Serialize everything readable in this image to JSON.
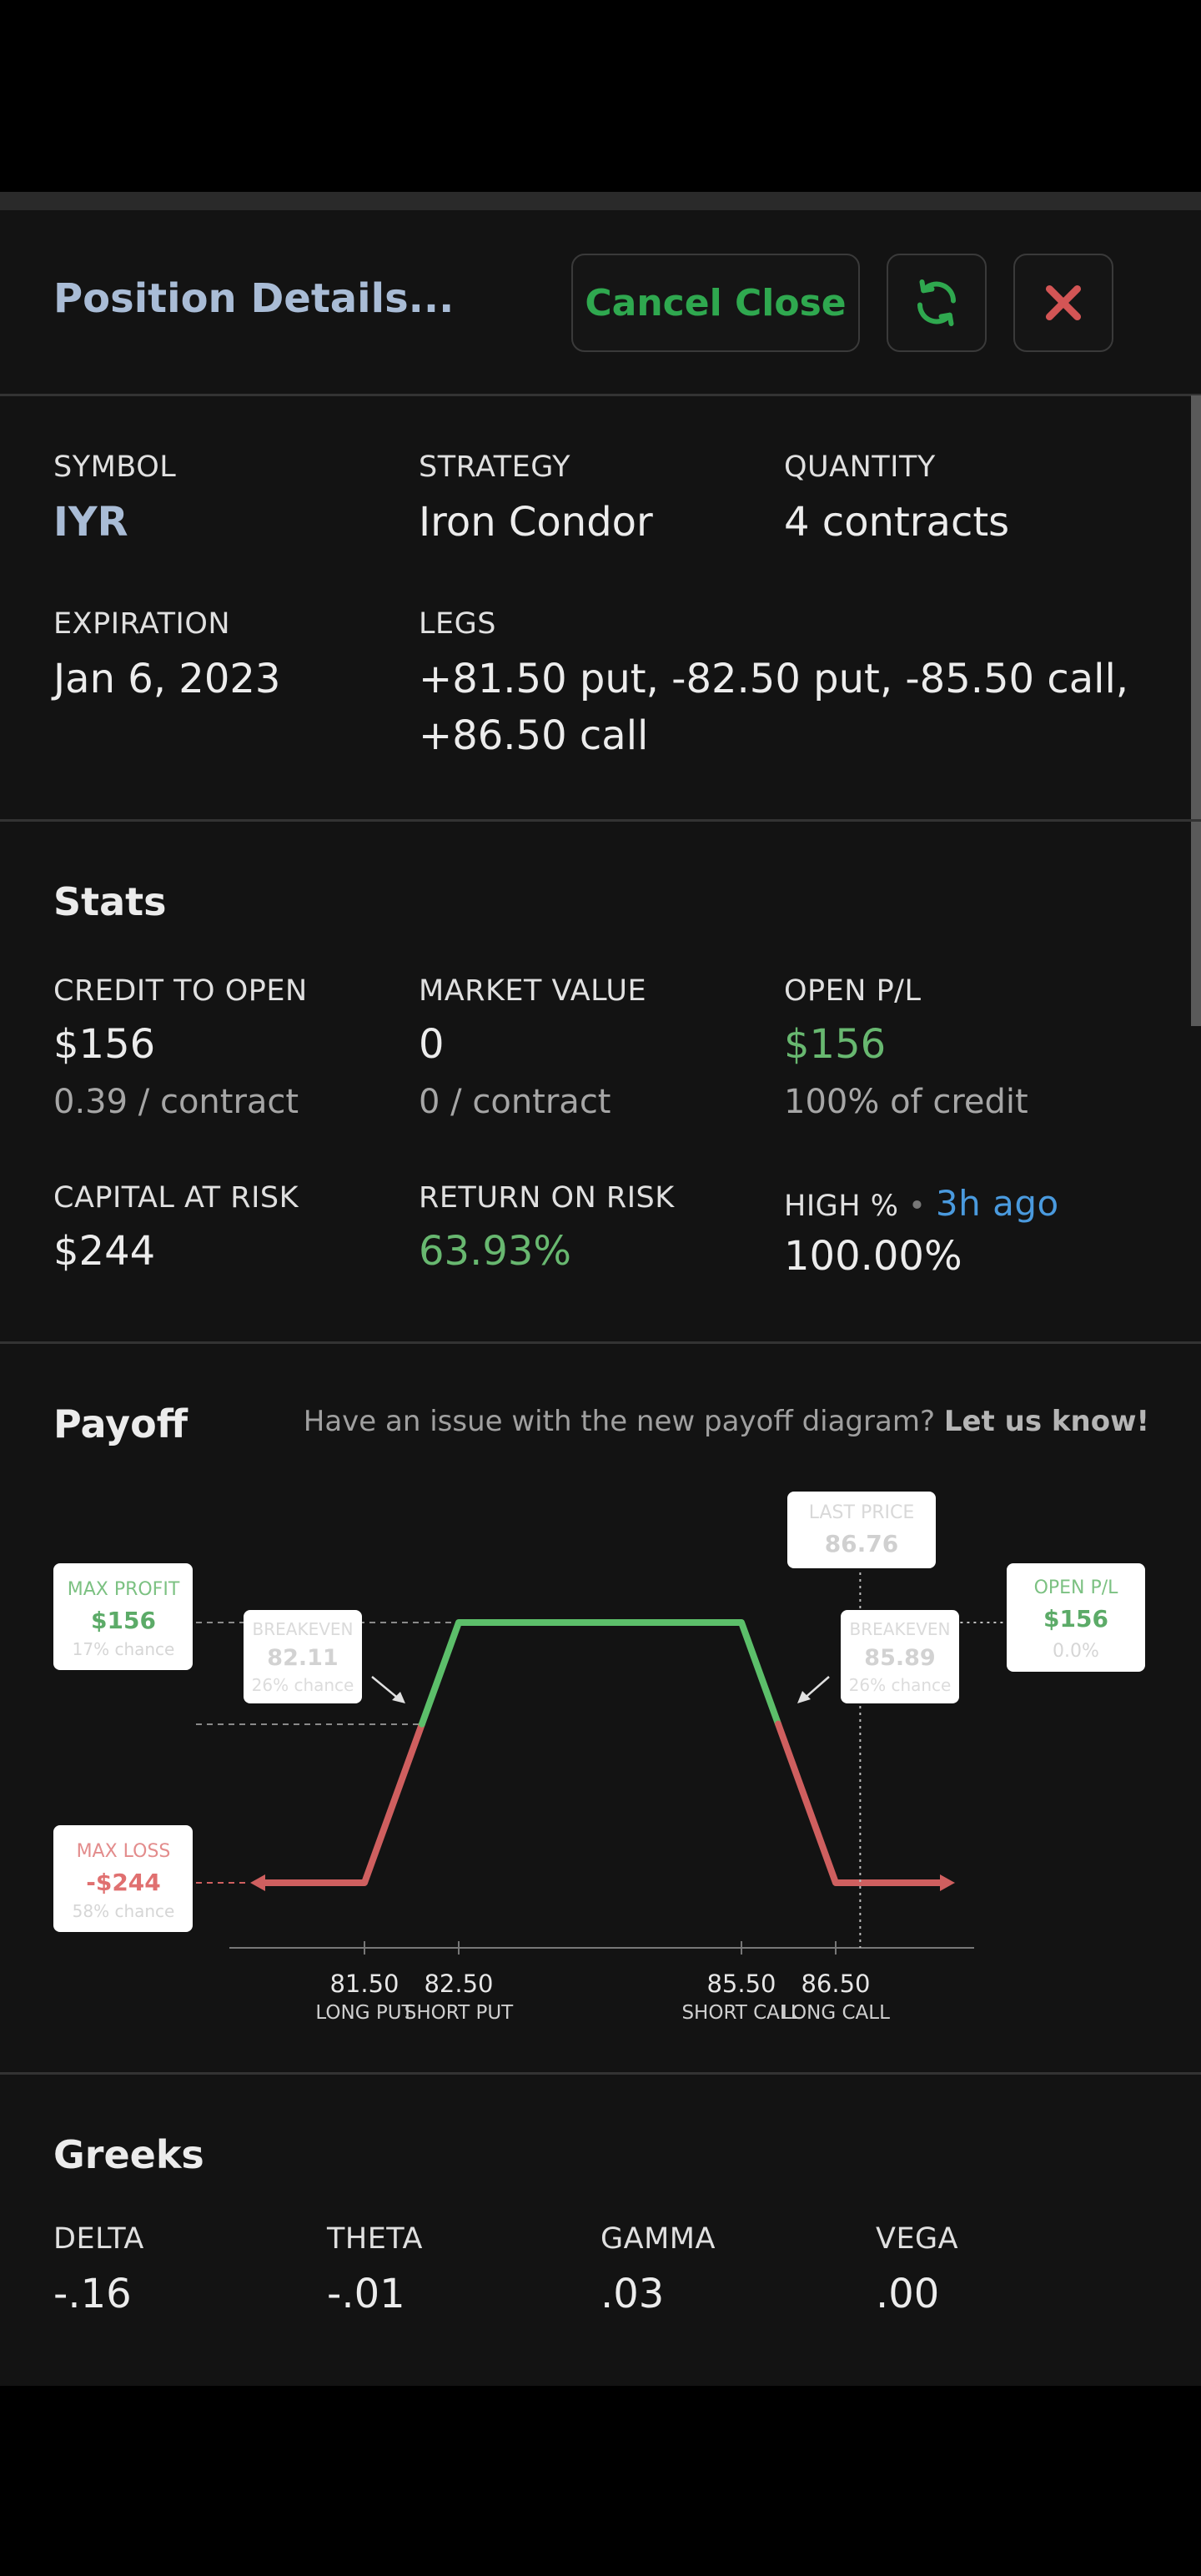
{
  "header": {
    "title": "Position Details...",
    "cancel_close_label": "Cancel Close"
  },
  "details": {
    "symbol_label": "SYMBOL",
    "symbol": "IYR",
    "strategy_label": "STRATEGY",
    "strategy": "Iron Condor",
    "quantity_label": "QUANTITY",
    "quantity": "4 contracts",
    "expiration_label": "EXPIRATION",
    "expiration": "Jan 6, 2023",
    "legs_label": "LEGS",
    "legs_line1": "+81.50 put, -82.50 put, -85.50 call,",
    "legs_line2": "+86.50 call"
  },
  "stats": {
    "title": "Stats",
    "credit_label": "CREDIT TO OPEN",
    "credit": "$156",
    "credit_sub": "0.39 / contract",
    "market_label": "MARKET VALUE",
    "market": "0",
    "market_sub": "0 / contract",
    "openpl_label": "OPEN P/L",
    "openpl": "$156",
    "openpl_sub": "100% of credit",
    "capital_label": "CAPITAL AT RISK",
    "capital": "$244",
    "ror_label": "RETURN ON RISK",
    "ror": "63.93%",
    "high_label": "HIGH %",
    "high_sep": "•",
    "high_time": "3h ago",
    "high_value": "100.00%"
  },
  "payoff": {
    "title": "Payoff",
    "note_prefix": "Have an issue with the new payoff diagram?",
    "note_link": "Let us know!"
  },
  "chart_data": {
    "type": "line",
    "x": [
      81.0,
      81.5,
      82.5,
      85.5,
      86.5,
      87.0
    ],
    "y": [
      -244,
      -244,
      156,
      156,
      -244,
      -244
    ],
    "xlim": [
      80.5,
      88.0
    ],
    "ylim": [
      -300,
      200
    ],
    "ticks": [
      {
        "value": 81.5,
        "label": "81.50",
        "sublabel": "LONG PUT"
      },
      {
        "value": 82.5,
        "label": "82.50",
        "sublabel": "SHORT PUT"
      },
      {
        "value": 85.5,
        "label": "85.50",
        "sublabel": "SHORT CALL"
      },
      {
        "value": 86.5,
        "label": "86.50",
        "sublabel": "LONG CALL"
      }
    ],
    "breakevens": [
      {
        "value": 82.11,
        "title": "BREAKEVEN",
        "price": "82.11",
        "chance": "26% chance"
      },
      {
        "value": 85.89,
        "title": "BREAKEVEN",
        "price": "85.89",
        "chance": "26% chance"
      }
    ],
    "last_price": {
      "value": 86.76,
      "title": "LAST PRICE",
      "price": "86.76"
    },
    "max_profit": {
      "title": "MAX PROFIT",
      "value": "$156",
      "chance": "17% chance"
    },
    "max_loss": {
      "title": "MAX LOSS",
      "value": "-$244",
      "chance": "58% chance"
    },
    "open_pl": {
      "title": "OPEN P/L",
      "value": "$156",
      "pct": "0.0%"
    },
    "colors": {
      "profit": "#5cbf6a",
      "loss": "#cf5f5f",
      "axis": "#777777"
    }
  },
  "greeks": {
    "title": "Greeks",
    "delta_label": "DELTA",
    "delta": "-.16",
    "theta_label": "THETA",
    "theta": "-.01",
    "gamma_label": "GAMMA",
    "gamma": ".03",
    "vega_label": "VEGA",
    "vega": ".00"
  }
}
